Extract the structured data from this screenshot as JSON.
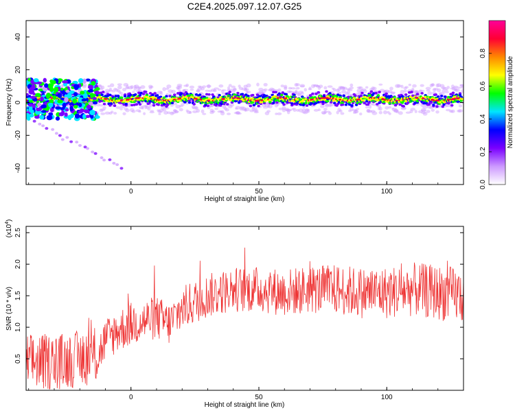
{
  "title": "C2E4.2025.097.12.07.G25",
  "chart_data": [
    {
      "type": "heatmap",
      "name": "spectrogram",
      "xlabel": "Height of straight line (km)",
      "ylabel": "Frequency (Hz)",
      "xlim": [
        -41,
        130
      ],
      "ylim": [
        -50,
        50
      ],
      "xticks": [
        0,
        50,
        100
      ],
      "yticks": [
        -40,
        -20,
        0,
        20,
        40
      ],
      "grid": false,
      "band_center_hz": 2,
      "band_halfwidth_hz": 4,
      "colorbar": {
        "label": "Normalized spectral amplitude",
        "range": [
          0.0,
          1.0
        ],
        "ticks": [
          "0.0",
          "0.2",
          "0.4",
          "0.6",
          "0.8"
        ],
        "tick_values": [
          0.0,
          0.2,
          0.4,
          0.6,
          0.8
        ]
      },
      "colors": [
        "#ffffff",
        "#cc99ff",
        "#7a00ff",
        "#0000ff",
        "#00e5ff",
        "#00ff00",
        "#ffff00",
        "#ff8800",
        "#ff0033",
        "#ff0099"
      ]
    },
    {
      "type": "line",
      "name": "snr",
      "xlabel": "Height of straight line (km)",
      "ylabel": "SNR (10 * v/v)",
      "exponent_label": "(x10",
      "exponent_power": "4",
      "exponent_close": ")",
      "xlim": [
        -41,
        130
      ],
      "ylim": [
        0.0,
        2.6
      ],
      "xticks": [
        0,
        50,
        100
      ],
      "yticks": [
        0.5,
        1.0,
        1.5,
        2.0,
        2.5
      ],
      "ytick_labels": [
        "0.5",
        "1.0",
        "1.5",
        "2.0",
        "2.5"
      ],
      "line_color": "#ee3333",
      "trend_x": [
        -41,
        -30,
        -20,
        -13,
        -10,
        -5,
        0,
        5,
        10,
        15,
        20,
        30,
        40,
        50,
        60,
        70,
        80,
        90,
        100,
        110,
        120,
        130
      ],
      "trend_y": [
        0.45,
        0.45,
        0.5,
        0.55,
        0.8,
        0.95,
        1.05,
        1.1,
        1.15,
        1.05,
        1.3,
        1.5,
        1.6,
        1.6,
        1.55,
        1.6,
        1.6,
        1.55,
        1.55,
        1.6,
        1.55,
        1.5
      ],
      "noise_x": [
        -41,
        -13,
        -12,
        30,
        130
      ],
      "noise_amp": [
        0.45,
        0.45,
        0.35,
        0.35,
        0.45
      ]
    }
  ]
}
